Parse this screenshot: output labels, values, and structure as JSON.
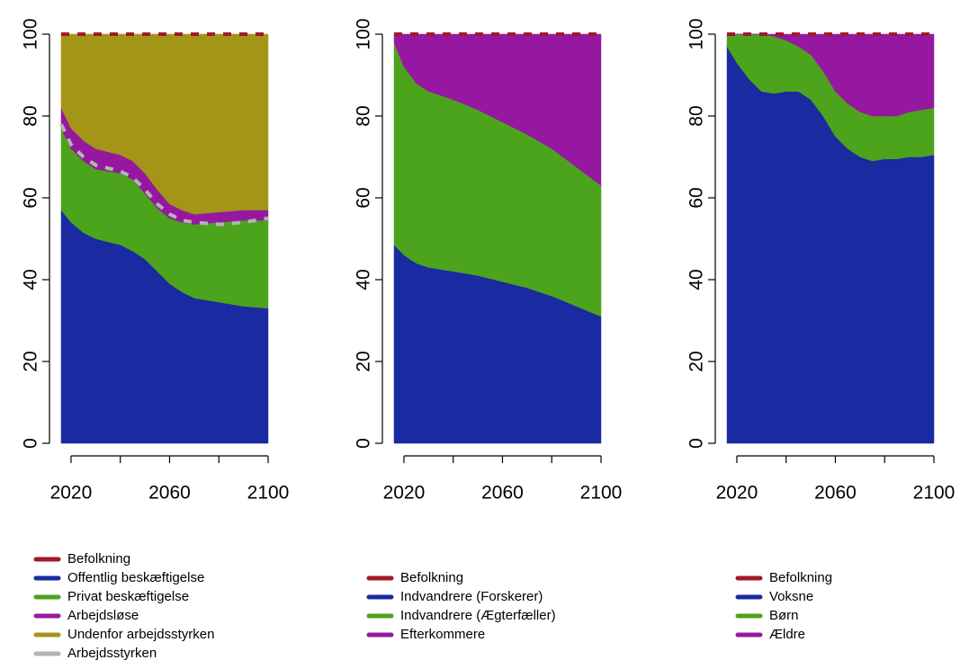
{
  "chart_data": [
    {
      "type": "stacked-area",
      "xlim": [
        2016,
        2100
      ],
      "ylim": [
        0,
        100
      ],
      "xticks": [
        2020,
        2060,
        2100
      ],
      "xminor_ticks": [
        2040,
        2080
      ],
      "yticks": [
        0,
        20,
        40,
        60,
        80,
        100
      ],
      "x": [
        2016,
        2020,
        2025,
        2030,
        2040,
        2045,
        2050,
        2055,
        2060,
        2065,
        2070,
        2080,
        2090,
        2100
      ],
      "series": [
        {
          "name": "Befolkning",
          "kind": "line",
          "dash": true,
          "color": "#a01a2a",
          "values": [
            100,
            100,
            100,
            100,
            100,
            100,
            100,
            100,
            100,
            100,
            100,
            100,
            100,
            100
          ]
        },
        {
          "name": "Offentlig beskæftigelse",
          "kind": "area",
          "color": "#1a2aa0",
          "values": [
            57,
            54,
            51.5,
            50,
            48.5,
            47,
            45,
            42,
            39,
            37,
            35.5,
            34.5,
            33.5,
            33
          ]
        },
        {
          "name": "Privat beskæftigelse",
          "kind": "area",
          "color": "#4ca31c",
          "values": [
            20,
            18,
            17.5,
            17,
            17.5,
            17.5,
            16,
            15.5,
            16,
            17,
            18,
            19.5,
            21,
            21.5
          ]
        },
        {
          "name": "Arbejdsløse",
          "kind": "area",
          "color": "#9618a0",
          "values": [
            5,
            5,
            5,
            5,
            4.5,
            4.5,
            5,
            4.5,
            3.5,
            3,
            2.5,
            2.5,
            2.5,
            2.5
          ]
        },
        {
          "name": "Undenfor arbejdsstyrken",
          "kind": "area",
          "color": "#a49418",
          "values": [
            18,
            23,
            26,
            28,
            29.5,
            31,
            34,
            38,
            41.5,
            43,
            44,
            43.5,
            43,
            43
          ]
        },
        {
          "name": "Arbejdsstyrken",
          "kind": "line",
          "dash": true,
          "color": "#b4b4b4",
          "values": [
            78,
            73,
            70,
            68,
            66.5,
            65,
            62,
            58.5,
            56,
            54.5,
            54,
            53.5,
            54,
            55
          ]
        }
      ]
    },
    {
      "type": "stacked-area",
      "xlim": [
        2016,
        2100
      ],
      "ylim": [
        0,
        100
      ],
      "xticks": [
        2020,
        2060,
        2100
      ],
      "xminor_ticks": [
        2040,
        2080
      ],
      "yticks": [
        0,
        20,
        40,
        60,
        80,
        100
      ],
      "x": [
        2016,
        2020,
        2025,
        2030,
        2040,
        2050,
        2060,
        2070,
        2080,
        2090,
        2100
      ],
      "series": [
        {
          "name": "Befolkning",
          "kind": "line",
          "dash": true,
          "color": "#a01a2a",
          "values": [
            100,
            100,
            100,
            100,
            100,
            100,
            100,
            100,
            100,
            100,
            100
          ]
        },
        {
          "name": "Indvandrere (Forskerer)",
          "kind": "area",
          "color": "#1a2aa0",
          "values": [
            48.5,
            46,
            44,
            43,
            42,
            41,
            39.5,
            38,
            36,
            33.5,
            31
          ]
        },
        {
          "name": "Indvandrere (Ægterfæller)",
          "kind": "area",
          "color": "#4ca31c",
          "values": [
            49.5,
            46,
            44,
            43,
            42,
            40.5,
            39,
            37.5,
            36,
            34,
            32
          ]
        },
        {
          "name": "Efterkommere",
          "kind": "area",
          "color": "#9618a0",
          "values": [
            2,
            8,
            12,
            14,
            16,
            18.5,
            21.5,
            24.5,
            28,
            32.5,
            37
          ]
        }
      ]
    },
    {
      "type": "stacked-area",
      "xlim": [
        2016,
        2100
      ],
      "ylim": [
        0,
        100
      ],
      "xticks": [
        2020,
        2060,
        2100
      ],
      "xminor_ticks": [
        2040,
        2080
      ],
      "yticks": [
        0,
        20,
        40,
        60,
        80,
        100
      ],
      "x": [
        2016,
        2020,
        2025,
        2030,
        2035,
        2040,
        2045,
        2050,
        2055,
        2060,
        2065,
        2070,
        2075,
        2080,
        2085,
        2090,
        2095,
        2100
      ],
      "series": [
        {
          "name": "Befolkning",
          "kind": "line",
          "dash": true,
          "color": "#a01a2a",
          "values": [
            100,
            100,
            100,
            100,
            100,
            100,
            100,
            100,
            100,
            100,
            100,
            100,
            100,
            100,
            100,
            100,
            100,
            100
          ]
        },
        {
          "name": "Voksne",
          "kind": "area",
          "color": "#1a2aa0",
          "values": [
            97,
            93,
            89,
            86,
            85.5,
            86,
            86,
            84,
            80,
            75,
            72,
            70,
            69,
            69.5,
            69.5,
            70,
            70,
            70.5
          ]
        },
        {
          "name": "Børn",
          "kind": "area",
          "color": "#4ca31c",
          "values": [
            2.5,
            7,
            11,
            14,
            14,
            12.5,
            11,
            11,
            11,
            11,
            11,
            11,
            11,
            10.5,
            10.5,
            11,
            11.5,
            11.5
          ]
        },
        {
          "name": "Ældre",
          "kind": "area",
          "color": "#9618a0",
          "values": [
            0.5,
            0,
            0,
            0,
            0.5,
            1.5,
            3,
            5,
            9,
            14,
            17,
            19,
            20,
            20,
            20,
            19,
            18.5,
            18
          ]
        }
      ]
    }
  ]
}
